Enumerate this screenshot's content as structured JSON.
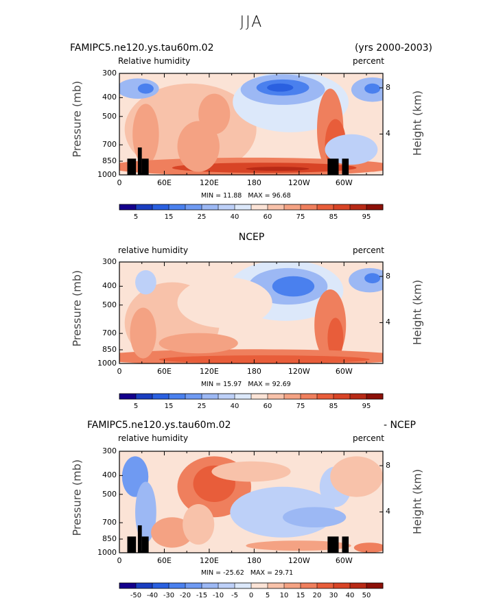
{
  "page_title": "JJA",
  "panels": [
    {
      "title_left": "FAMIPC5.ne120.ys.tau60m.02",
      "title_right": "(yrs 2000-2003)",
      "title_center": "",
      "var_label": "Relative humidity",
      "units_label": "percent",
      "stats": {
        "min_label": "MIN =",
        "min": "11.88",
        "max_label": "MAX =",
        "max": "96.68"
      }
    },
    {
      "title_left": "",
      "title_right": "",
      "title_center": "NCEP",
      "var_label": "relative humidity",
      "units_label": "percent",
      "stats": {
        "min_label": "MIN =",
        "min": "15.97",
        "max_label": "MAX =",
        "max": "92.69"
      }
    },
    {
      "title_left": "FAMIPC5.ne120.ys.tau60m.02",
      "title_right": "- NCEP",
      "title_center": "",
      "var_label": "relative humidity",
      "units_label": "percent",
      "stats": {
        "min_label": "MIN =",
        "min": "-25.62",
        "max_label": "MAX =",
        "max": "29.71"
      }
    }
  ],
  "axes": {
    "ylabel_left": "Pressure (mb)",
    "ylabel_right": "Height (km)",
    "pressure_ticks": [
      "300",
      "400",
      "500",
      "700",
      "850",
      "1000"
    ],
    "height_ticks": [
      "8",
      "4"
    ],
    "lon_ticks": [
      "0",
      "60E",
      "120E",
      "180",
      "120W",
      "60W"
    ]
  },
  "chart_data": [
    {
      "type": "heatmap",
      "x_axis": "longitude",
      "y_axis": "pressure (mb)",
      "y_scale": "log",
      "y_range": [
        1000,
        300
      ],
      "color_scale": {
        "levels": [
          "5",
          "15",
          "25",
          "40",
          "60",
          "75",
          "85",
          "95"
        ],
        "colors": [
          "#14008c",
          "#1a3ec0",
          "#2a60e0",
          "#4a80ee",
          "#6f9af2",
          "#9cb8f4",
          "#bdd0f8",
          "#dce8fa",
          "#fbe3d6",
          "#f8c2aa",
          "#f4a283",
          "#ef7f5d",
          "#e85d3a",
          "#d84426",
          "#b82a16",
          "#8c1008"
        ]
      },
      "min": 11.88,
      "max": 96.68
    },
    {
      "type": "heatmap",
      "x_axis": "longitude",
      "y_axis": "pressure (mb)",
      "y_scale": "log",
      "y_range": [
        1000,
        300
      ],
      "color_scale": {
        "levels": [
          "5",
          "15",
          "25",
          "40",
          "60",
          "75",
          "85",
          "95"
        ],
        "colors": [
          "#14008c",
          "#1a3ec0",
          "#2a60e0",
          "#4a80ee",
          "#6f9af2",
          "#9cb8f4",
          "#bdd0f8",
          "#dce8fa",
          "#fbe3d6",
          "#f8c2aa",
          "#f4a283",
          "#ef7f5d",
          "#e85d3a",
          "#d84426",
          "#b82a16",
          "#8c1008"
        ]
      },
      "min": 15.97,
      "max": 92.69
    },
    {
      "type": "heatmap",
      "x_axis": "longitude",
      "y_axis": "pressure (mb)",
      "y_scale": "log",
      "y_range": [
        1000,
        300
      ],
      "color_scale": {
        "levels": [
          "-50",
          "-40",
          "-30",
          "-20",
          "-15",
          "-10",
          "-5",
          "0",
          "5",
          "10",
          "15",
          "20",
          "30",
          "40",
          "50"
        ],
        "colors": [
          "#14008c",
          "#1a3ec0",
          "#2a60e0",
          "#4a80ee",
          "#6f9af2",
          "#9cb8f4",
          "#bdd0f8",
          "#dce8fa",
          "#fbe3d6",
          "#f8c2aa",
          "#f4a283",
          "#ef7f5d",
          "#e85d3a",
          "#d84426",
          "#b82a16",
          "#8c1008"
        ]
      },
      "min": -25.62,
      "max": 29.71
    }
  ]
}
